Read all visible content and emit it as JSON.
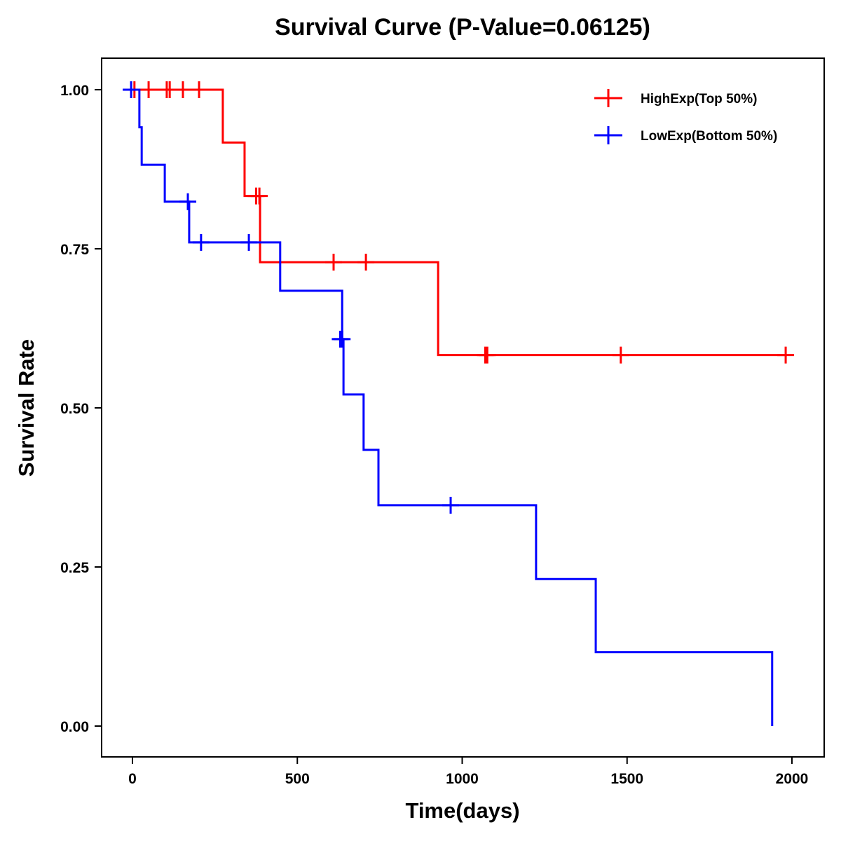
{
  "chart_data": {
    "type": "line",
    "subtype": "kaplan-meier-step",
    "title": "Survival Curve (P-Value=0.06125)",
    "xlabel": "Time(days)",
    "ylabel": "Survival Rate",
    "xlim": [
      -100,
      2100
    ],
    "ylim": [
      -0.05,
      1.05
    ],
    "x_ticks": [
      0,
      500,
      1000,
      1500,
      2000
    ],
    "x_tick_labels": [
      "0",
      "500",
      "1000",
      "1500",
      "2000"
    ],
    "y_ticks": [
      0,
      0.25,
      0.5,
      0.75,
      1.0
    ],
    "y_tick_labels": [
      "0.00",
      "0.25",
      "0.50",
      "0.75",
      "1.00"
    ],
    "grid": false,
    "legend_position": "top-right",
    "series": [
      {
        "name": "HighExp(Top 50%)",
        "color": "#ff0000",
        "steps": [
          {
            "x": 0,
            "y": 1.0
          },
          {
            "x": 274,
            "y": 0.917
          },
          {
            "x": 340,
            "y": 0.833
          },
          {
            "x": 387,
            "y": 0.729
          },
          {
            "x": 927,
            "y": 0.583
          },
          {
            "x": 1985,
            "y": 0.583
          }
        ],
        "censored": [
          {
            "x": 6,
            "y": 1.0
          },
          {
            "x": 49,
            "y": 1.0
          },
          {
            "x": 104,
            "y": 1.0
          },
          {
            "x": 113,
            "y": 1.0
          },
          {
            "x": 153,
            "y": 1.0
          },
          {
            "x": 202,
            "y": 1.0
          },
          {
            "x": 375,
            "y": 0.833
          },
          {
            "x": 385,
            "y": 0.833
          },
          {
            "x": 610,
            "y": 0.729
          },
          {
            "x": 708,
            "y": 0.729
          },
          {
            "x": 1070,
            "y": 0.583
          },
          {
            "x": 1076,
            "y": 0.583
          },
          {
            "x": 1481,
            "y": 0.583
          },
          {
            "x": 1981,
            "y": 0.583
          }
        ]
      },
      {
        "name": "LowExp(Bottom 50%)",
        "color": "#0000ff",
        "steps": [
          {
            "x": -8,
            "y": 1.0
          },
          {
            "x": 21,
            "y": 0.941
          },
          {
            "x": 28,
            "y": 0.882
          },
          {
            "x": 98,
            "y": 0.824
          },
          {
            "x": 172,
            "y": 0.76
          },
          {
            "x": 448,
            "y": 0.684
          },
          {
            "x": 636,
            "y": 0.608
          },
          {
            "x": 640,
            "y": 0.521
          },
          {
            "x": 701,
            "y": 0.434
          },
          {
            "x": 746,
            "y": 0.347
          },
          {
            "x": 1224,
            "y": 0.231
          },
          {
            "x": 1405,
            "y": 0.116
          },
          {
            "x": 1940,
            "y": 0.0
          }
        ],
        "censored": [
          {
            "x": -4,
            "y": 1.0
          },
          {
            "x": 168,
            "y": 0.824
          },
          {
            "x": 208,
            "y": 0.76
          },
          {
            "x": 353,
            "y": 0.76
          },
          {
            "x": 630,
            "y": 0.608
          },
          {
            "x": 636,
            "y": 0.608
          },
          {
            "x": 965,
            "y": 0.347
          }
        ]
      }
    ]
  }
}
